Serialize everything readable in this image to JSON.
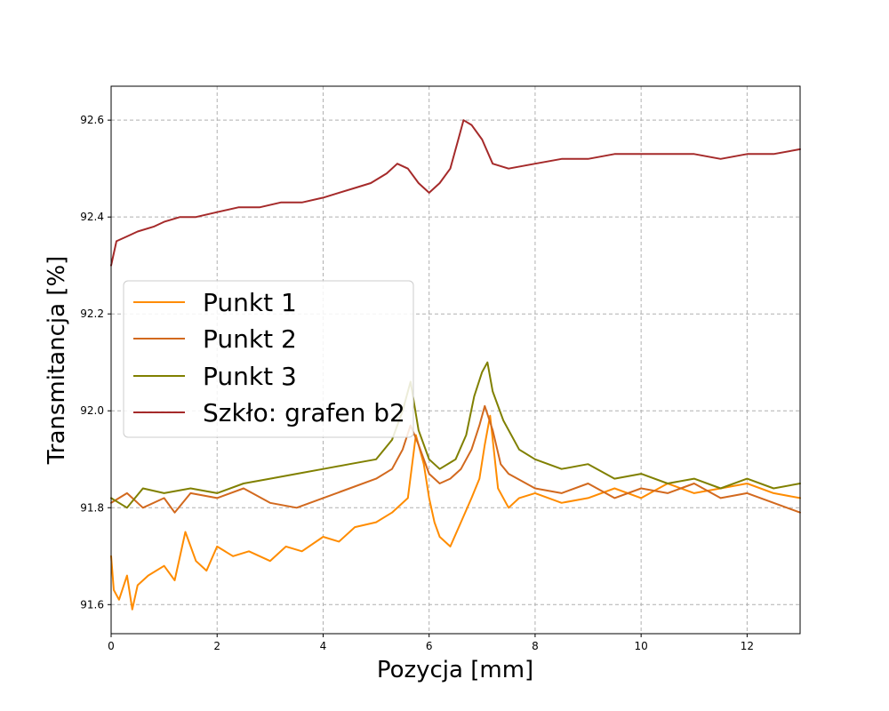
{
  "chart_data": {
    "type": "line",
    "title": "",
    "xlabel": "Pozycja [mm]",
    "ylabel": "Transmitancja [%]",
    "xlim": [
      0,
      13
    ],
    "ylim": [
      91.54,
      92.67
    ],
    "grid": true,
    "legend_position": "center-left",
    "x_ticks": [
      0,
      2,
      4,
      6,
      8,
      10,
      12
    ],
    "x_tick_labels": [
      "0",
      "2",
      "4",
      "6",
      "8",
      "10",
      "12"
    ],
    "y_ticks": [
      91.6,
      91.8,
      92.0,
      92.2,
      92.4,
      92.6
    ],
    "y_tick_labels": [
      "91.6",
      "91.8",
      "92.0",
      "92.2",
      "92.4",
      "92.6"
    ],
    "series": [
      {
        "name": "Punkt 1",
        "color": "#ff8c00",
        "x": [
          0,
          0.05,
          0.15,
          0.3,
          0.4,
          0.5,
          0.7,
          1.0,
          1.2,
          1.4,
          1.6,
          1.8,
          2.0,
          2.3,
          2.6,
          3.0,
          3.3,
          3.6,
          4.0,
          4.3,
          4.6,
          5.0,
          5.3,
          5.6,
          5.75,
          5.9,
          6.0,
          6.1,
          6.2,
          6.4,
          6.6,
          6.8,
          6.95,
          7.05,
          7.15,
          7.3,
          7.5,
          7.7,
          8.0,
          8.5,
          9.0,
          9.5,
          10.0,
          10.5,
          11.0,
          11.5,
          12.0,
          12.5,
          13.0
        ],
        "y": [
          91.7,
          91.63,
          91.61,
          91.66,
          91.59,
          91.64,
          91.66,
          91.68,
          91.65,
          91.75,
          91.69,
          91.67,
          91.72,
          91.7,
          91.71,
          91.69,
          91.72,
          91.71,
          91.74,
          91.73,
          91.76,
          91.77,
          91.79,
          91.82,
          91.95,
          91.89,
          91.82,
          91.77,
          91.74,
          91.72,
          91.77,
          91.82,
          91.86,
          91.93,
          91.99,
          91.84,
          91.8,
          91.82,
          91.83,
          91.81,
          91.82,
          91.84,
          91.82,
          91.85,
          91.83,
          91.84,
          91.85,
          91.83,
          91.82
        ]
      },
      {
        "name": "Punkt 2",
        "color": "#d2691e",
        "x": [
          0,
          0.3,
          0.6,
          1.0,
          1.2,
          1.5,
          2.0,
          2.5,
          3.0,
          3.5,
          4.0,
          4.5,
          5.0,
          5.3,
          5.5,
          5.65,
          5.8,
          6.0,
          6.2,
          6.4,
          6.6,
          6.8,
          6.95,
          7.05,
          7.2,
          7.35,
          7.5,
          8.0,
          8.5,
          9.0,
          9.5,
          10.0,
          10.5,
          11.0,
          11.5,
          12.0,
          12.5,
          13.0
        ],
        "y": [
          91.81,
          91.83,
          91.8,
          91.82,
          91.79,
          91.83,
          91.82,
          91.84,
          91.81,
          91.8,
          91.82,
          91.84,
          91.86,
          91.88,
          91.92,
          91.97,
          91.93,
          91.87,
          91.85,
          91.86,
          91.88,
          91.92,
          91.97,
          92.01,
          91.96,
          91.89,
          91.87,
          91.84,
          91.83,
          91.85,
          91.82,
          91.84,
          91.83,
          91.85,
          91.82,
          91.83,
          91.81,
          91.79
        ]
      },
      {
        "name": "Punkt 3",
        "color": "#808000",
        "x": [
          0,
          0.3,
          0.6,
          1.0,
          1.5,
          2.0,
          2.5,
          3.0,
          3.5,
          4.0,
          4.5,
          5.0,
          5.3,
          5.5,
          5.65,
          5.8,
          6.0,
          6.2,
          6.5,
          6.7,
          6.85,
          7.0,
          7.1,
          7.2,
          7.4,
          7.7,
          8.0,
          8.5,
          9.0,
          9.5,
          10.0,
          10.5,
          11.0,
          11.5,
          12.0,
          12.5,
          13.0
        ],
        "y": [
          91.82,
          91.8,
          91.84,
          91.83,
          91.84,
          91.83,
          91.85,
          91.86,
          91.87,
          91.88,
          91.89,
          91.9,
          91.94,
          92.0,
          92.06,
          91.96,
          91.9,
          91.88,
          91.9,
          91.95,
          92.03,
          92.08,
          92.1,
          92.04,
          91.98,
          91.92,
          91.9,
          91.88,
          91.89,
          91.86,
          91.87,
          91.85,
          91.86,
          91.84,
          91.86,
          91.84,
          91.85
        ]
      },
      {
        "name": "Szkło: grafen b2",
        "color": "#a52a2a",
        "x": [
          0,
          0.1,
          0.3,
          0.5,
          0.8,
          1.0,
          1.3,
          1.6,
          2.0,
          2.4,
          2.8,
          3.2,
          3.6,
          4.0,
          4.3,
          4.6,
          4.9,
          5.2,
          5.4,
          5.6,
          5.8,
          6.0,
          6.2,
          6.4,
          6.55,
          6.65,
          6.8,
          7.0,
          7.2,
          7.5,
          8.0,
          8.5,
          9.0,
          9.5,
          10.0,
          10.5,
          11.0,
          11.5,
          12.0,
          12.5,
          13.0
        ],
        "y": [
          92.3,
          92.35,
          92.36,
          92.37,
          92.38,
          92.39,
          92.4,
          92.4,
          92.41,
          92.42,
          92.42,
          92.43,
          92.43,
          92.44,
          92.45,
          92.46,
          92.47,
          92.49,
          92.51,
          92.5,
          92.47,
          92.45,
          92.47,
          92.5,
          92.56,
          92.6,
          92.59,
          92.56,
          92.51,
          92.5,
          92.51,
          92.52,
          92.52,
          92.53,
          92.53,
          92.53,
          92.53,
          92.52,
          92.53,
          92.53,
          92.54
        ]
      }
    ]
  }
}
